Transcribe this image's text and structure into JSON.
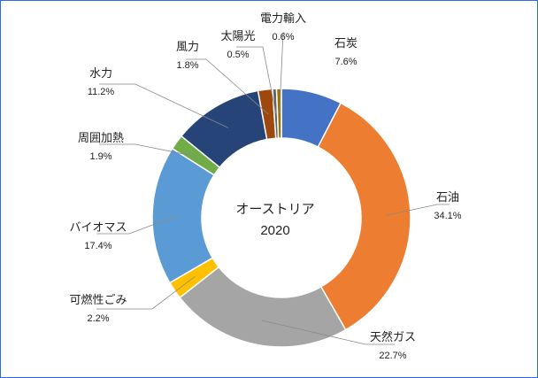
{
  "chart_data": {
    "type": "pie",
    "variant": "donut",
    "title": "オーストリア",
    "subtitle": "2020",
    "categories": [
      "石炭",
      "石油",
      "天然ガス",
      "可燃性ごみ",
      "バイオマス",
      "周囲加熱",
      "水力",
      "風力",
      "太陽光",
      "電力輸入"
    ],
    "values": [
      7.6,
      34.1,
      22.7,
      2.2,
      17.4,
      1.9,
      11.2,
      1.8,
      0.5,
      0.6
    ],
    "value_labels": [
      "7.6%",
      "34.1%",
      "22.7%",
      "2.2%",
      "17.4%",
      "1.9%",
      "11.2%",
      "1.8%",
      "0.5%",
      "0.6%"
    ],
    "colors": [
      "#4472c4",
      "#ed7d31",
      "#a5a5a5",
      "#ffc000",
      "#5b9bd5",
      "#70ad47",
      "#264478",
      "#9e480e",
      "#636363",
      "#997300"
    ],
    "legend": "none"
  }
}
